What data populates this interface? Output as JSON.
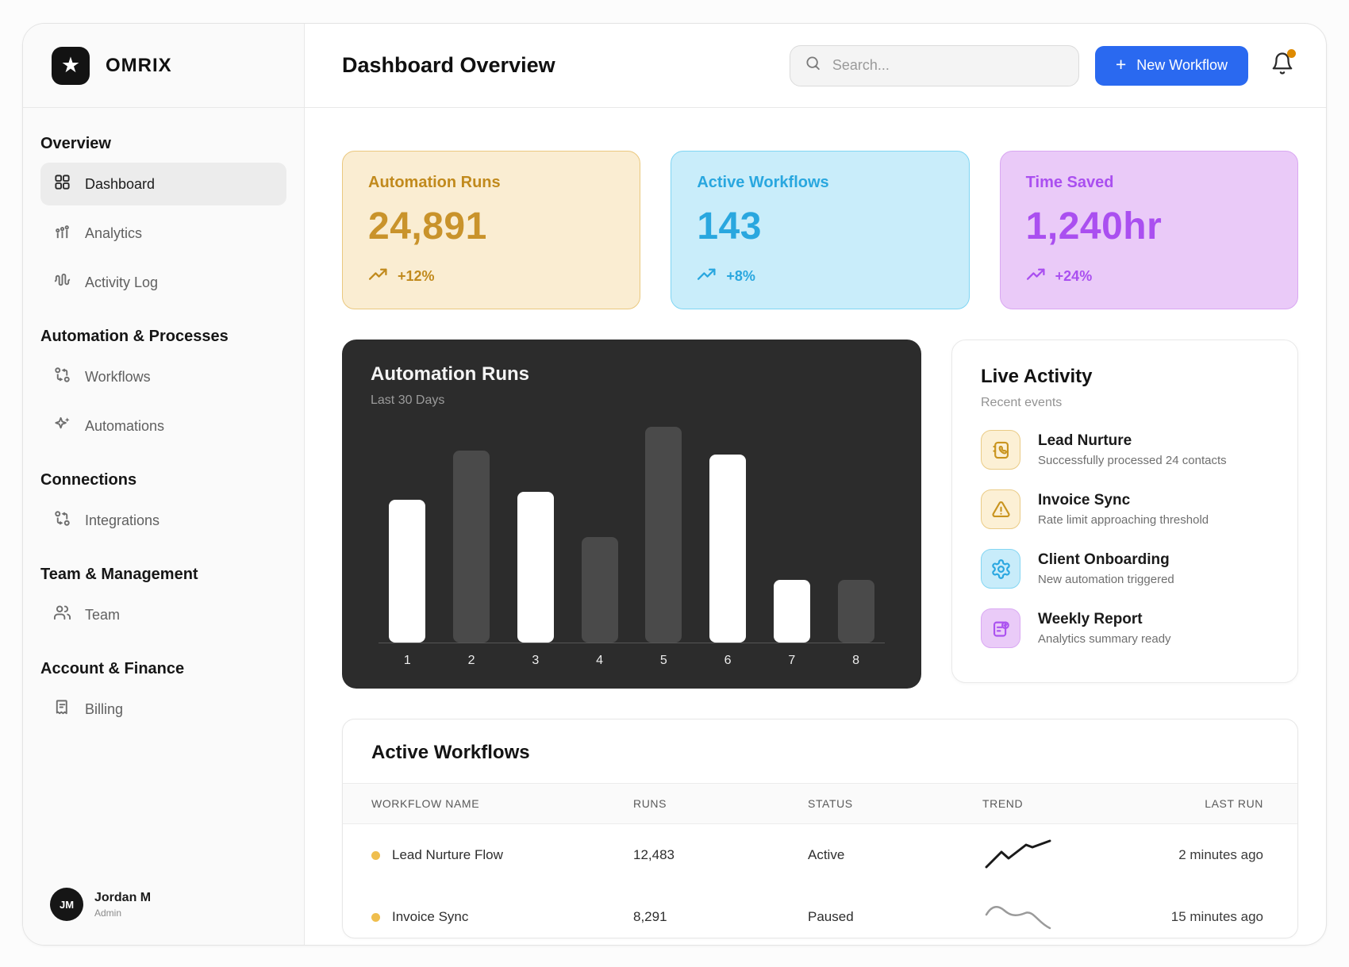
{
  "app": {
    "brand": "OMRIX"
  },
  "header": {
    "title": "Dashboard Overview",
    "search_placeholder": "Search...",
    "new_workflow_label": "New Workflow",
    "new_workflow_plus": "+",
    "accent_color": "#2A69F0",
    "notification_dot_color": "#DE8A00"
  },
  "sidebar": {
    "sections": [
      {
        "header": "Overview",
        "items": [
          {
            "label": "Dashboard",
            "icon": "dashboard-grid-icon",
            "active": true
          },
          {
            "label": "Analytics",
            "icon": "analytics-bars-icon",
            "active": false
          },
          {
            "label": "Activity Log",
            "icon": "activity-wave-icon",
            "active": false
          }
        ]
      },
      {
        "header": "Automation & Processes",
        "items": [
          {
            "label": "Workflows",
            "icon": "workflow-branch-icon",
            "active": false
          },
          {
            "label": "Automations",
            "icon": "sparkle-icon",
            "active": false
          }
        ]
      },
      {
        "header": "Connections",
        "items": [
          {
            "label": "Integrations",
            "icon": "workflow-branch-icon",
            "active": false
          }
        ]
      },
      {
        "header": "Team & Management",
        "items": [
          {
            "label": "Team",
            "icon": "people-icon",
            "active": false
          }
        ]
      },
      {
        "header": "Account & Finance",
        "items": [
          {
            "label": "Billing",
            "icon": "receipt-icon",
            "active": false
          }
        ]
      }
    ],
    "user": {
      "initials": "JM",
      "name": "Jordan M",
      "role": "Admin"
    }
  },
  "stats": [
    {
      "label": "Automation Runs",
      "value": "24,891",
      "trend": "+12%",
      "colors": {
        "bg": "#FAEDD2",
        "border": "#EAC87F",
        "text": "#C18A1D"
      }
    },
    {
      "label": "Active Workflows",
      "value": "143",
      "trend": "+8%",
      "colors": {
        "bg": "#C9EDFA",
        "border": "#7FD5F3",
        "text": "#29A7DF"
      }
    },
    {
      "label": "Time Saved",
      "value": "1,240hr",
      "trend": "+24%",
      "colors": {
        "bg": "#EACAF8",
        "border": "#D9A7F2",
        "text": "#AA4FF0"
      }
    }
  ],
  "chart_data": {
    "type": "bar",
    "title": "Automation Runs",
    "subtitle": "Last 30 Days",
    "categories": [
      "1",
      "2",
      "3",
      "4",
      "5",
      "6",
      "7",
      "8"
    ],
    "values": [
      66,
      89,
      70,
      49,
      100,
      87,
      29,
      29
    ],
    "bar_colors": [
      "#FFFFFF",
      "#4A4A4A",
      "#FFFFFF",
      "#4A4A4A",
      "#4A4A4A",
      "#FFFFFF",
      "#FFFFFF",
      "#4A4A4A"
    ],
    "background": "#2C2C2C",
    "axis_color": "#565656",
    "ylim": [
      0,
      100
    ],
    "grid": false,
    "xlabel": "",
    "ylabel": "",
    "legend": null
  },
  "live_activity": {
    "title": "Live Activity",
    "subtitle": "Recent events",
    "events": [
      {
        "title": "Lead Nurture",
        "description": "Successfully processed 24 contacts",
        "icon": "contact-book-icon",
        "theme": "amber"
      },
      {
        "title": "Invoice Sync",
        "description": "Rate limit approaching threshold",
        "icon": "warning-triangle-icon",
        "theme": "amber"
      },
      {
        "title": "Client Onboarding",
        "description": "New automation triggered",
        "icon": "gear-icon",
        "theme": "blue"
      },
      {
        "title": "Weekly Report",
        "description": "Analytics summary ready",
        "icon": "report-check-icon",
        "theme": "purple"
      }
    ]
  },
  "workflows_table": {
    "title": "Active Workflows",
    "columns": [
      "WORKFLOW NAME",
      "RUNS",
      "STATUS",
      "TREND",
      "LAST RUN"
    ],
    "rows": [
      {
        "name": "Lead Nurture Flow",
        "runs": "12,483",
        "status": "Active",
        "trend": "up",
        "last_run": "2 minutes ago",
        "dot_color": "#EFBE4E"
      },
      {
        "name": "Invoice Sync",
        "runs": "8,291",
        "status": "Paused",
        "trend": "down",
        "last_run": "15 minutes ago",
        "dot_color": "#EFBE4E"
      }
    ]
  }
}
